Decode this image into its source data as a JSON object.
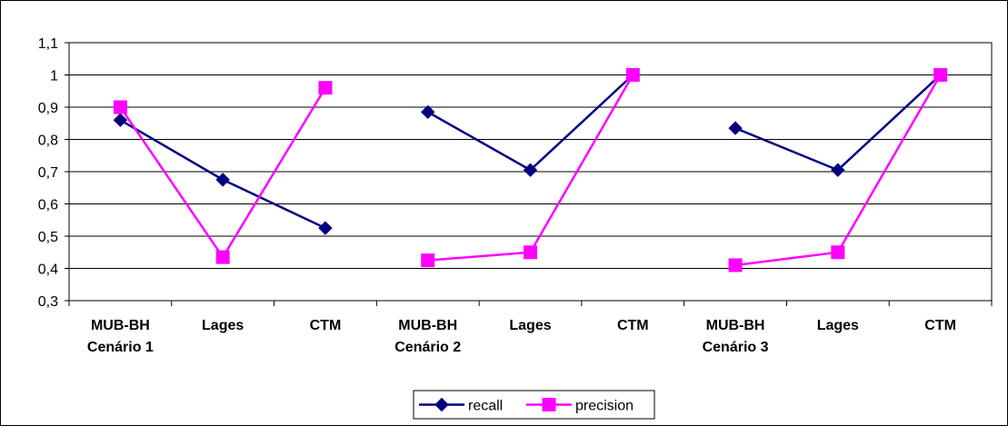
{
  "chart_data": {
    "type": "line",
    "categories": [
      [
        "MUB-BH",
        "Cenário 1"
      ],
      [
        "Lages"
      ],
      [
        "CTM"
      ],
      [
        "MUB-BH",
        "Cenário 2"
      ],
      [
        "Lages"
      ],
      [
        "CTM"
      ],
      [
        "MUB-BH",
        "Cenário 3"
      ],
      [
        "Lages"
      ],
      [
        "CTM"
      ]
    ],
    "segments": [
      [
        0,
        2
      ],
      [
        3,
        5
      ],
      [
        6,
        8
      ]
    ],
    "series": [
      {
        "name": "recall",
        "color": "#000080",
        "marker": "diamond",
        "values": [
          0.86,
          0.675,
          0.525,
          0.885,
          0.705,
          1.0,
          0.835,
          0.705,
          1.0
        ]
      },
      {
        "name": "precision",
        "color": "#ff00ff",
        "marker": "square",
        "values": [
          0.9,
          0.435,
          0.96,
          0.425,
          0.45,
          1.0,
          0.41,
          0.45,
          1.0
        ]
      }
    ],
    "ylim": [
      0.3,
      1.1
    ],
    "yticks": [
      "0,3",
      "0,4",
      "0,5",
      "0,6",
      "0,7",
      "0,8",
      "0,9",
      "1",
      "1,1"
    ],
    "ytick_values": [
      0.3,
      0.4,
      0.5,
      0.6,
      0.7,
      0.8,
      0.9,
      1.0,
      1.1
    ],
    "grid": true,
    "legend_position": "bottom-center",
    "title": "",
    "xlabel": "",
    "ylabel": ""
  }
}
